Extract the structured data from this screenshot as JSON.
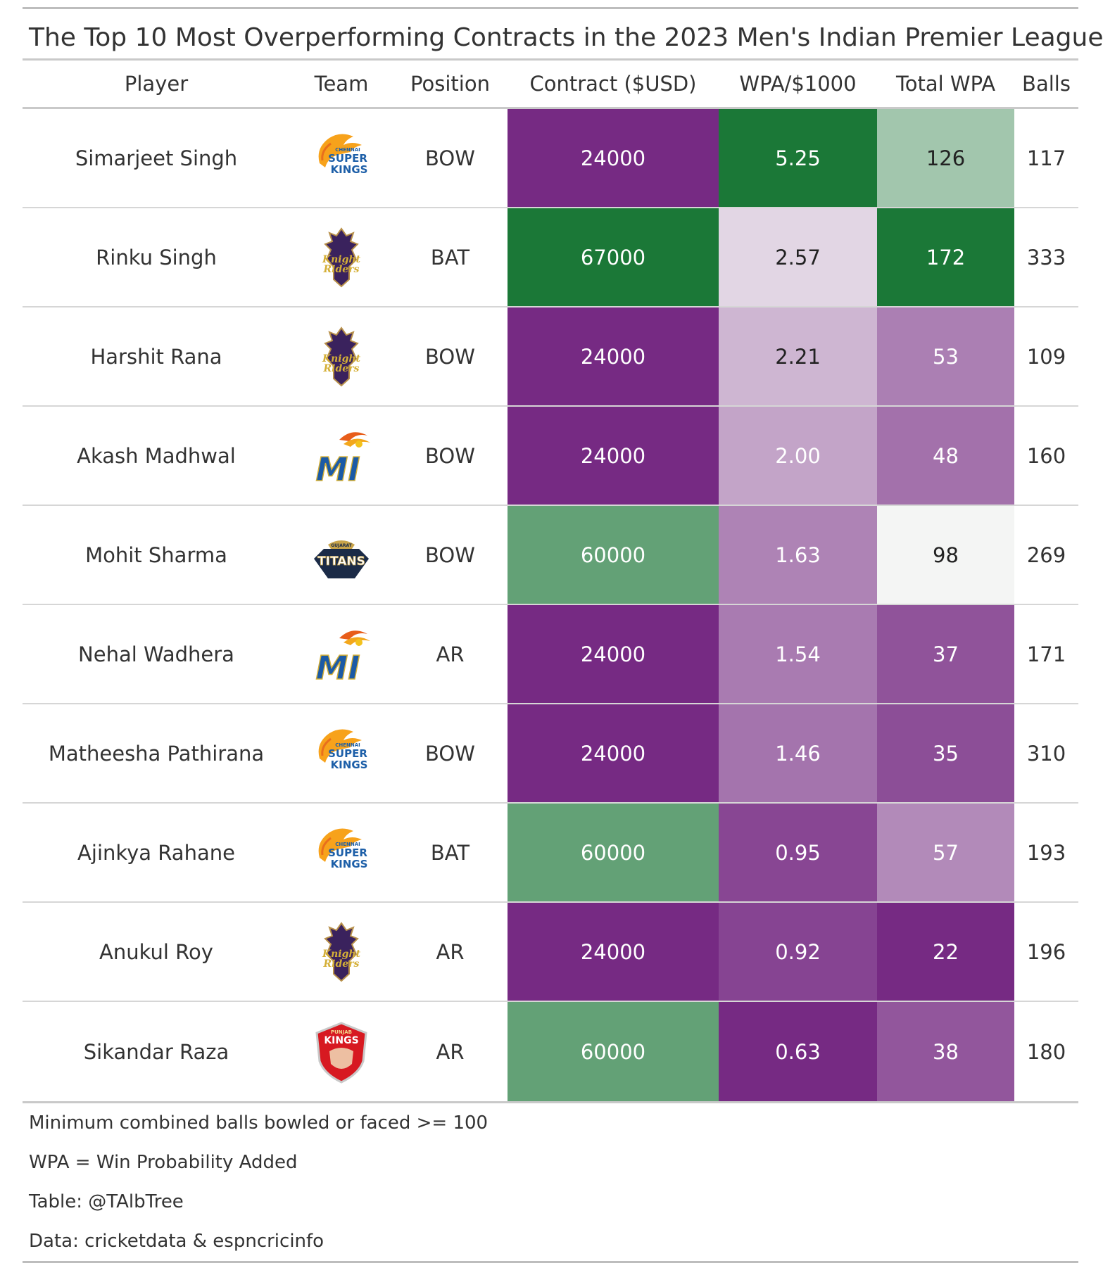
{
  "title": "The Top 10 Most Overperforming Contracts in the 2023 Men's Indian Premier League",
  "columns": [
    "Player",
    "Team",
    "Position",
    "Contract ($USD)",
    "WPA/$1000",
    "Total WPA",
    "Balls"
  ],
  "teams": {
    "CSK": {
      "line1": "CHENNAI",
      "line2": "SUPER",
      "line3": "KINGS"
    },
    "KKR": {
      "line1": "KOLKATA",
      "line2": "Knight",
      "line3": "Riders"
    },
    "MI": {
      "line1": "MI"
    },
    "GT": {
      "line1": "GUJARAT",
      "line2": "TITANS"
    },
    "PBKS": {
      "line1": "PUNJAB",
      "line2": "KINGS"
    }
  },
  "footnotes": [
    "Minimum combined balls bowled or faced >= 100",
    "WPA = Win Probability Added",
    "Table: @TAlbTree",
    "Data: cricketdata & espncricinfo"
  ],
  "chart_data": {
    "type": "table",
    "title": "The Top 10 Most Overperforming Contracts in the 2023 Men's Indian Premier League",
    "columns": [
      "Player",
      "Team",
      "Position",
      "Contract ($USD)",
      "WPA/$1000",
      "Total WPA",
      "Balls"
    ],
    "rows": [
      {
        "player": "Simarjeet Singh",
        "team": "CSK",
        "position": "BOW",
        "contract": "24000",
        "wpa_per_1000": "5.25",
        "total_wpa": "126",
        "balls": "117"
      },
      {
        "player": "Rinku Singh",
        "team": "KKR",
        "position": "BAT",
        "contract": "67000",
        "wpa_per_1000": "2.57",
        "total_wpa": "172",
        "balls": "333"
      },
      {
        "player": "Harshit Rana",
        "team": "KKR",
        "position": "BOW",
        "contract": "24000",
        "wpa_per_1000": "2.21",
        "total_wpa": "53",
        "balls": "109"
      },
      {
        "player": "Akash Madhwal",
        "team": "MI",
        "position": "BOW",
        "contract": "24000",
        "wpa_per_1000": "2.00",
        "total_wpa": "48",
        "balls": "160"
      },
      {
        "player": "Mohit Sharma",
        "team": "GT",
        "position": "BOW",
        "contract": "60000",
        "wpa_per_1000": "1.63",
        "total_wpa": "98",
        "balls": "269"
      },
      {
        "player": "Nehal Wadhera",
        "team": "MI",
        "position": "AR",
        "contract": "24000",
        "wpa_per_1000": "1.54",
        "total_wpa": "37",
        "balls": "171"
      },
      {
        "player": "Matheesha Pathirana",
        "team": "CSK",
        "position": "BOW",
        "contract": "24000",
        "wpa_per_1000": "1.46",
        "total_wpa": "35",
        "balls": "310"
      },
      {
        "player": "Ajinkya Rahane",
        "team": "CSK",
        "position": "BAT",
        "contract": "60000",
        "wpa_per_1000": "0.95",
        "total_wpa": "57",
        "balls": "193"
      },
      {
        "player": "Anukul Roy",
        "team": "KKR",
        "position": "AR",
        "contract": "24000",
        "wpa_per_1000": "0.92",
        "total_wpa": "22",
        "balls": "196"
      },
      {
        "player": "Sikandar Raza",
        "team": "PBKS",
        "position": "AR",
        "contract": "60000",
        "wpa_per_1000": "0.63",
        "total_wpa": "38",
        "balls": "180"
      }
    ],
    "color_scale": {
      "low": "#762a83",
      "mid": "#f7f7f7",
      "high": "#1b7837"
    }
  }
}
